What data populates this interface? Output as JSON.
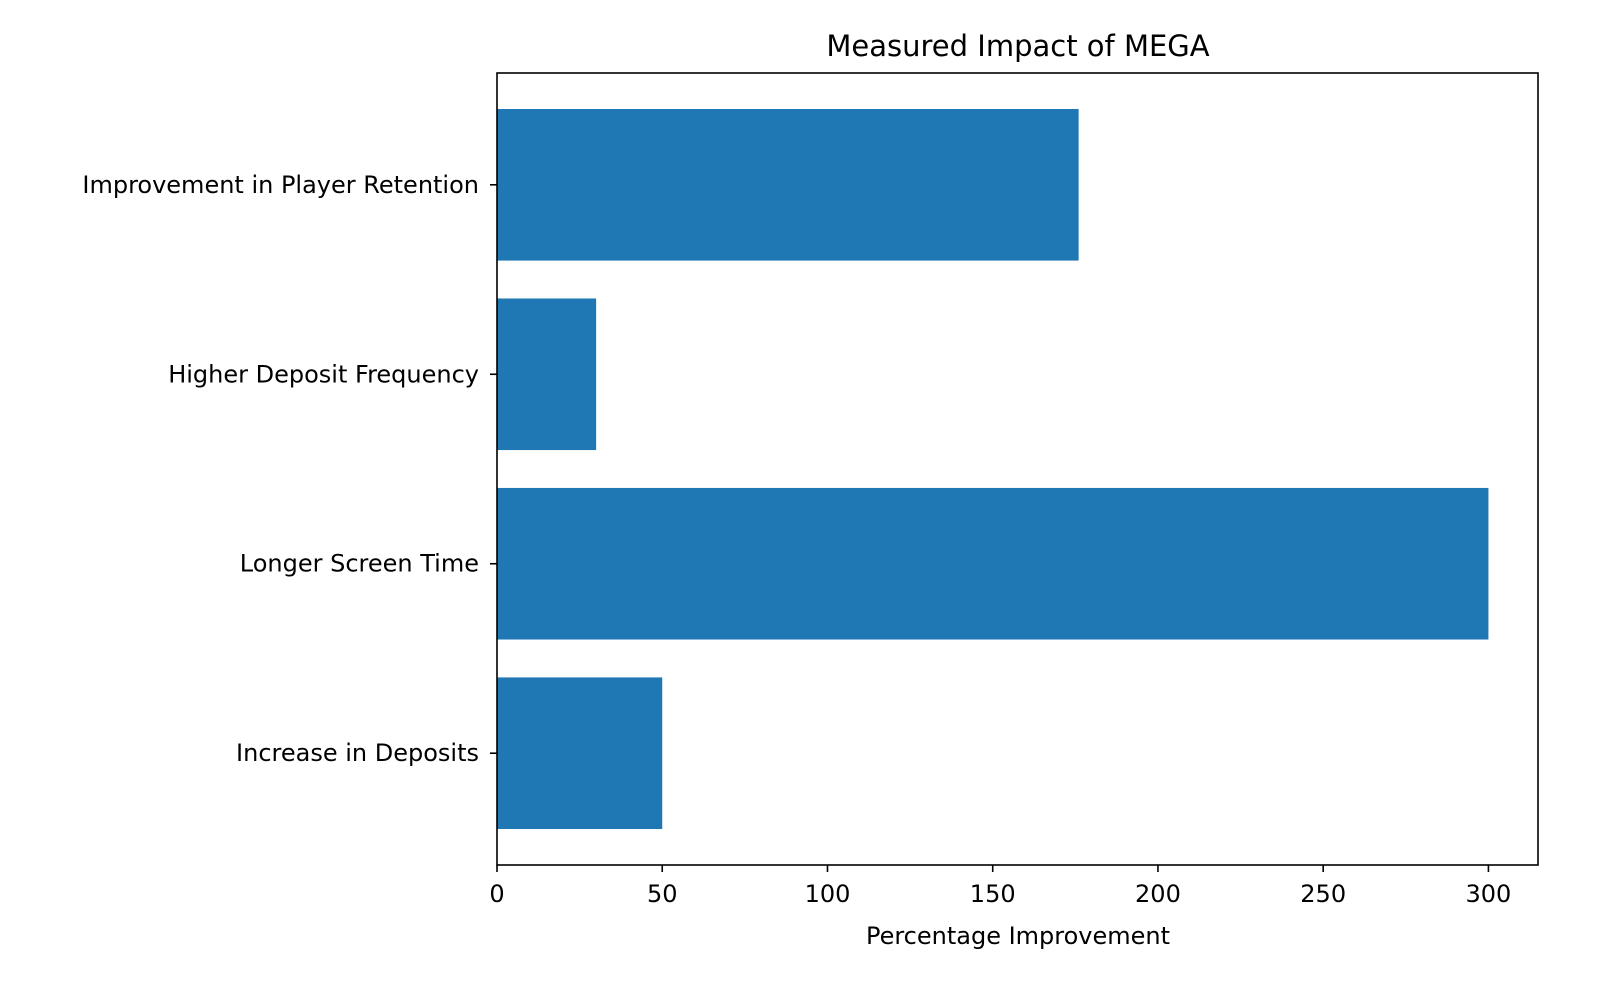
{
  "chart_data": {
    "type": "bar",
    "orientation": "horizontal",
    "title": "Measured Impact of MEGA",
    "xlabel": "Percentage Improvement",
    "ylabel": "",
    "categories": [
      "Increase in Deposits",
      "Longer Screen Time",
      "Higher Deposit Frequency",
      "Improvement in Player Retention"
    ],
    "values": [
      50,
      300,
      30,
      176
    ],
    "xlim": [
      0,
      315
    ],
    "xticks": [
      0,
      50,
      100,
      150,
      200,
      250,
      300
    ],
    "grid": false,
    "bar_color": "#1f77b4"
  }
}
